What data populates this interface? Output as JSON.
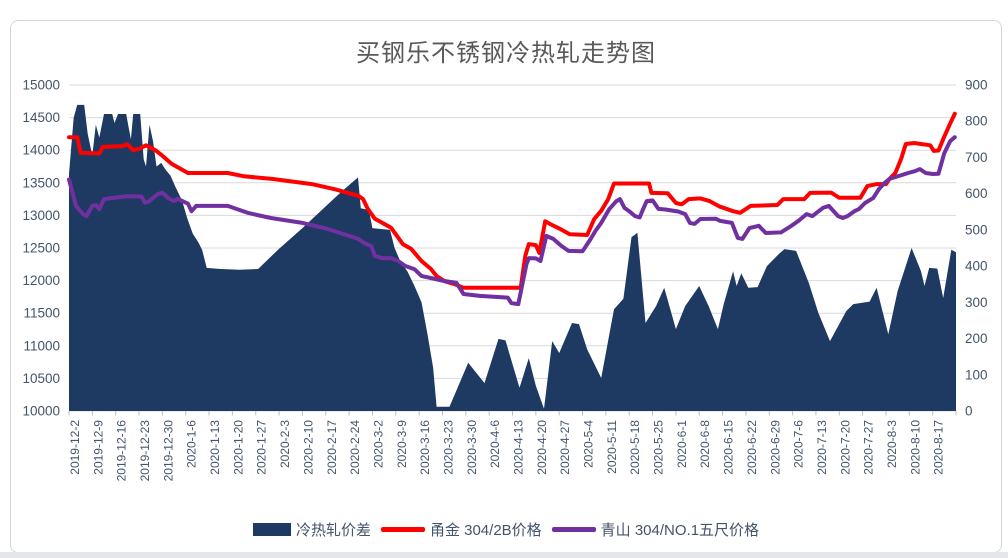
{
  "title": "买钢乐不锈钢冷热轧走势图",
  "colors": {
    "area": "#1E3A63",
    "red_line": "#FF0000",
    "purple_line": "#7030A0",
    "gridline": "#D9D9D9",
    "axis_text": "#44546A",
    "title_text": "#595959"
  },
  "chart_data": {
    "type": "combo",
    "title": "买钢乐不锈钢冷热轧走势图",
    "grid": true,
    "legend_position": "bottom",
    "x_encoding": "week index, 0 = 2019-12-2, one label per week, daily points in between",
    "x_tick_labels": [
      "2019-12-2",
      "2019-12-9",
      "2019-12-16",
      "2019-12-23",
      "2019-12-30",
      "2020-1-6",
      "2020-1-13",
      "2020-1-20",
      "2020-1-27",
      "2020-2-3",
      "2020-2-10",
      "2020-2-17",
      "2020-2-24",
      "2020-3-2",
      "2020-3-9",
      "2020-3-16",
      "2020-3-23",
      "2020-3-30",
      "2020-4-6",
      "2020-4-13",
      "2020-4-20",
      "2020-4-27",
      "2020-5-4",
      "2020-5-11",
      "2020-5-18",
      "2020-5-25",
      "2020-6-1",
      "2020-6-8",
      "2020-6-15",
      "2020-6-22",
      "2020-6-29",
      "2020-7-6",
      "2020-7-13",
      "2020-7-20",
      "2020-7-27",
      "2020-8-3",
      "2020-8-10",
      "2020-8-17"
    ],
    "left_axis": {
      "min": 10000,
      "max": 15000,
      "step": 500,
      "ticks": [
        15000,
        14500,
        14000,
        13500,
        13000,
        12500,
        12000,
        11500,
        11000,
        10500,
        10000
      ]
    },
    "right_axis": {
      "min": 0,
      "max": 900,
      "step": 100,
      "ticks": [
        900,
        800,
        700,
        600,
        500,
        400,
        300,
        200,
        100,
        0
      ]
    },
    "series": [
      {
        "name": "冷热轧价差",
        "type": "area",
        "axis": "right",
        "color": "#1E3A63",
        "points": [
          [
            0.0,
            655
          ],
          [
            0.2,
            810
          ],
          [
            0.35,
            845
          ],
          [
            0.65,
            845
          ],
          [
            0.8,
            765
          ],
          [
            1.0,
            705
          ],
          [
            1.15,
            790
          ],
          [
            1.3,
            755
          ],
          [
            1.5,
            820
          ],
          [
            1.85,
            820
          ],
          [
            1.95,
            795
          ],
          [
            2.1,
            820
          ],
          [
            2.45,
            820
          ],
          [
            2.55,
            785
          ],
          [
            2.65,
            750
          ],
          [
            2.75,
            820
          ],
          [
            3.05,
            820
          ],
          [
            3.2,
            695
          ],
          [
            3.3,
            675
          ],
          [
            3.45,
            790
          ],
          [
            3.6,
            745
          ],
          [
            3.75,
            675
          ],
          [
            3.95,
            685
          ],
          [
            4.15,
            665
          ],
          [
            4.35,
            650
          ],
          [
            4.55,
            620
          ],
          [
            4.85,
            580
          ],
          [
            5.05,
            535
          ],
          [
            5.3,
            490
          ],
          [
            5.55,
            465
          ],
          [
            5.7,
            445
          ],
          [
            5.9,
            395
          ],
          [
            6.5,
            392
          ],
          [
            7.3,
            390
          ],
          [
            8.1,
            392
          ],
          [
            9.0,
            448
          ],
          [
            10.0,
            505
          ],
          [
            11.0,
            565
          ],
          [
            11.7,
            607
          ],
          [
            12.38,
            645
          ],
          [
            12.5,
            560
          ],
          [
            12.85,
            555
          ],
          [
            13.0,
            505
          ],
          [
            13.75,
            500
          ],
          [
            13.95,
            450
          ],
          [
            14.2,
            412
          ],
          [
            14.5,
            385
          ],
          [
            14.8,
            345
          ],
          [
            15.1,
            300
          ],
          [
            15.35,
            215
          ],
          [
            15.6,
            120
          ],
          [
            15.75,
            12
          ],
          [
            16.3,
            12
          ],
          [
            17.1,
            133
          ],
          [
            17.8,
            77
          ],
          [
            18.4,
            199
          ],
          [
            18.7,
            195
          ],
          [
            19.3,
            64
          ],
          [
            19.7,
            146
          ],
          [
            20.0,
            70
          ],
          [
            20.35,
            6
          ],
          [
            20.7,
            193
          ],
          [
            21.0,
            160
          ],
          [
            21.55,
            243
          ],
          [
            21.85,
            240
          ],
          [
            22.2,
            170
          ],
          [
            22.8,
            91
          ],
          [
            23.35,
            281
          ],
          [
            23.75,
            310
          ],
          [
            24.1,
            480
          ],
          [
            24.35,
            492
          ],
          [
            24.7,
            243
          ],
          [
            25.15,
            290
          ],
          [
            25.5,
            340
          ],
          [
            26.0,
            226
          ],
          [
            26.4,
            290
          ],
          [
            27.0,
            345
          ],
          [
            27.4,
            290
          ],
          [
            27.8,
            226
          ],
          [
            28.05,
            295
          ],
          [
            28.45,
            386
          ],
          [
            28.6,
            345
          ],
          [
            28.8,
            380
          ],
          [
            29.1,
            340
          ],
          [
            29.5,
            342
          ],
          [
            29.9,
            400
          ],
          [
            30.4,
            433
          ],
          [
            30.65,
            447
          ],
          [
            31.15,
            442
          ],
          [
            31.7,
            353
          ],
          [
            32.1,
            271
          ],
          [
            32.6,
            193
          ],
          [
            33.3,
            276
          ],
          [
            33.6,
            295
          ],
          [
            34.3,
            302
          ],
          [
            34.6,
            340
          ],
          [
            35.1,
            212
          ],
          [
            35.5,
            331
          ],
          [
            36.1,
            450
          ],
          [
            36.5,
            386
          ],
          [
            36.65,
            345
          ],
          [
            36.85,
            395
          ],
          [
            37.2,
            393
          ],
          [
            37.45,
            312
          ],
          [
            37.8,
            445
          ],
          [
            38.0,
            438
          ]
        ]
      },
      {
        "name": "甬金 304/2B价格",
        "type": "line",
        "axis": "left",
        "color": "#FF0000",
        "points": [
          [
            0.0,
            14200
          ],
          [
            0.35,
            14200
          ],
          [
            0.5,
            13960
          ],
          [
            1.3,
            13950
          ],
          [
            1.45,
            14050
          ],
          [
            2.25,
            14060
          ],
          [
            2.5,
            14090
          ],
          [
            2.75,
            14000
          ],
          [
            3.0,
            14020
          ],
          [
            3.3,
            14075
          ],
          [
            3.7,
            14000
          ],
          [
            3.95,
            13930
          ],
          [
            4.4,
            13790
          ],
          [
            5.1,
            13650
          ],
          [
            6.8,
            13650
          ],
          [
            7.5,
            13600
          ],
          [
            8.7,
            13560
          ],
          [
            10.4,
            13480
          ],
          [
            11.4,
            13400
          ],
          [
            12.4,
            13300
          ],
          [
            12.6,
            13250
          ],
          [
            12.8,
            13100
          ],
          [
            13.1,
            12950
          ],
          [
            13.45,
            12880
          ],
          [
            13.8,
            12810
          ],
          [
            14.3,
            12560
          ],
          [
            14.65,
            12490
          ],
          [
            15.1,
            12300
          ],
          [
            15.5,
            12180
          ],
          [
            15.75,
            12070
          ],
          [
            16.1,
            11990
          ],
          [
            16.5,
            11950
          ],
          [
            16.9,
            11890
          ],
          [
            19.35,
            11890
          ],
          [
            19.55,
            12380
          ],
          [
            19.7,
            12560
          ],
          [
            20.0,
            12545
          ],
          [
            20.15,
            12425
          ],
          [
            20.4,
            12910
          ],
          [
            20.65,
            12860
          ],
          [
            21.05,
            12790
          ],
          [
            21.45,
            12710
          ],
          [
            22.2,
            12700
          ],
          [
            22.5,
            12945
          ],
          [
            22.8,
            13070
          ],
          [
            23.1,
            13250
          ],
          [
            23.35,
            13490
          ],
          [
            24.85,
            13490
          ],
          [
            24.95,
            13345
          ],
          [
            25.65,
            13340
          ],
          [
            26.0,
            13190
          ],
          [
            26.25,
            13170
          ],
          [
            26.55,
            13250
          ],
          [
            27.05,
            13260
          ],
          [
            27.45,
            13220
          ],
          [
            27.85,
            13140
          ],
          [
            28.45,
            13065
          ],
          [
            28.75,
            13040
          ],
          [
            29.2,
            13145
          ],
          [
            30.35,
            13160
          ],
          [
            30.6,
            13250
          ],
          [
            31.5,
            13250
          ],
          [
            31.75,
            13345
          ],
          [
            32.65,
            13350
          ],
          [
            33.0,
            13270
          ],
          [
            33.9,
            13270
          ],
          [
            34.2,
            13450
          ],
          [
            34.6,
            13480
          ],
          [
            35.0,
            13480
          ],
          [
            35.15,
            13560
          ],
          [
            35.4,
            13650
          ],
          [
            35.65,
            13865
          ],
          [
            35.85,
            14095
          ],
          [
            36.2,
            14110
          ],
          [
            36.9,
            14075
          ],
          [
            37.05,
            13990
          ],
          [
            37.25,
            13995
          ],
          [
            37.45,
            14170
          ],
          [
            37.7,
            14370
          ],
          [
            37.95,
            14560
          ]
        ]
      },
      {
        "name": "青山 304/NO.1五尺价格",
        "type": "line",
        "axis": "left",
        "color": "#7030A0",
        "points": [
          [
            0.0,
            13550
          ],
          [
            0.3,
            13145
          ],
          [
            0.6,
            13020
          ],
          [
            0.75,
            12990
          ],
          [
            1.0,
            13145
          ],
          [
            1.15,
            13160
          ],
          [
            1.3,
            13095
          ],
          [
            1.5,
            13250
          ],
          [
            1.8,
            13265
          ],
          [
            2.5,
            13295
          ],
          [
            3.1,
            13290
          ],
          [
            3.25,
            13195
          ],
          [
            3.4,
            13210
          ],
          [
            3.8,
            13325
          ],
          [
            4.0,
            13350
          ],
          [
            4.25,
            13265
          ],
          [
            4.5,
            13220
          ],
          [
            4.65,
            13255
          ],
          [
            5.1,
            13180
          ],
          [
            5.25,
            13065
          ],
          [
            5.45,
            13145
          ],
          [
            6.8,
            13145
          ],
          [
            7.7,
            13035
          ],
          [
            8.65,
            12960
          ],
          [
            10.0,
            12885
          ],
          [
            11.0,
            12800
          ],
          [
            12.4,
            12640
          ],
          [
            12.65,
            12575
          ],
          [
            12.95,
            12530
          ],
          [
            13.1,
            12380
          ],
          [
            13.4,
            12345
          ],
          [
            13.8,
            12345
          ],
          [
            14.1,
            12300
          ],
          [
            14.4,
            12225
          ],
          [
            14.8,
            12175
          ],
          [
            15.1,
            12070
          ],
          [
            15.5,
            12040
          ],
          [
            16.05,
            11995
          ],
          [
            16.6,
            11965
          ],
          [
            16.9,
            11795
          ],
          [
            17.6,
            11765
          ],
          [
            18.8,
            11740
          ],
          [
            18.95,
            11655
          ],
          [
            19.25,
            11640
          ],
          [
            19.6,
            12255
          ],
          [
            19.7,
            12345
          ],
          [
            20.0,
            12340
          ],
          [
            20.2,
            12300
          ],
          [
            20.45,
            12685
          ],
          [
            20.75,
            12640
          ],
          [
            21.1,
            12530
          ],
          [
            21.4,
            12455
          ],
          [
            22.0,
            12450
          ],
          [
            22.35,
            12640
          ],
          [
            22.55,
            12760
          ],
          [
            22.8,
            12885
          ],
          [
            23.15,
            13100
          ],
          [
            23.45,
            13220
          ],
          [
            23.6,
            13250
          ],
          [
            23.8,
            13115
          ],
          [
            24.0,
            13065
          ],
          [
            24.25,
            12990
          ],
          [
            24.45,
            12970
          ],
          [
            24.6,
            13100
          ],
          [
            24.75,
            13220
          ],
          [
            25.0,
            13230
          ],
          [
            25.25,
            13100
          ],
          [
            25.55,
            13090
          ],
          [
            26.1,
            13060
          ],
          [
            26.4,
            13020
          ],
          [
            26.6,
            12885
          ],
          [
            26.8,
            12870
          ],
          [
            27.05,
            12945
          ],
          [
            27.7,
            12950
          ],
          [
            27.9,
            12915
          ],
          [
            28.4,
            12885
          ],
          [
            28.65,
            12655
          ],
          [
            28.85,
            12640
          ],
          [
            29.15,
            12805
          ],
          [
            29.55,
            12840
          ],
          [
            29.85,
            12730
          ],
          [
            30.5,
            12740
          ],
          [
            30.95,
            12840
          ],
          [
            31.25,
            12915
          ],
          [
            31.6,
            13020
          ],
          [
            31.85,
            12990
          ],
          [
            32.3,
            13115
          ],
          [
            32.55,
            13145
          ],
          [
            32.95,
            12990
          ],
          [
            33.15,
            12960
          ],
          [
            33.35,
            12990
          ],
          [
            33.65,
            13065
          ],
          [
            33.85,
            13100
          ],
          [
            34.1,
            13190
          ],
          [
            34.45,
            13265
          ],
          [
            34.7,
            13405
          ],
          [
            34.95,
            13500
          ],
          [
            35.15,
            13560
          ],
          [
            35.55,
            13605
          ],
          [
            35.95,
            13650
          ],
          [
            36.25,
            13680
          ],
          [
            36.45,
            13710
          ],
          [
            36.7,
            13650
          ],
          [
            37.0,
            13635
          ],
          [
            37.25,
            13640
          ],
          [
            37.5,
            13955
          ],
          [
            37.75,
            14140
          ],
          [
            37.95,
            14200
          ]
        ]
      }
    ]
  }
}
